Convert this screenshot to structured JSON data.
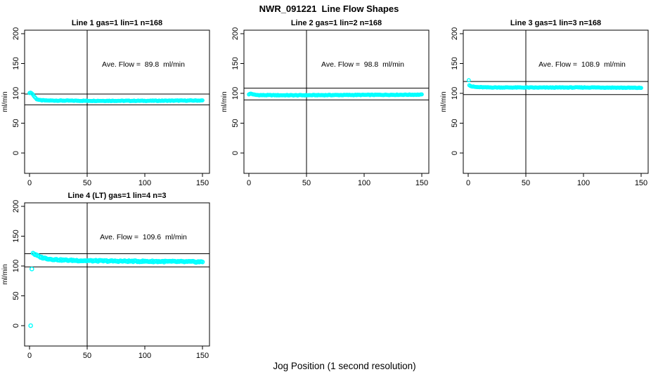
{
  "page": {
    "title": "NWR_091221  Line Flow Shapes",
    "xlabel": "Jog Position (1 second resolution)"
  },
  "colors": {
    "marker": "#00FFFF",
    "axis": "#000000",
    "background": "#FFFFFF"
  },
  "chart_data": [
    {
      "type": "scatter",
      "title": "Line 1 gas=1 lin=1 n=168",
      "annotation": "Ave. Flow =  89.8  ml/min",
      "ave_flow_ml_min": 89.8,
      "n": 168,
      "ylabel": "ml/min",
      "xlim": [
        0,
        150
      ],
      "ylim": [
        0,
        200
      ],
      "x_ticks": [
        0,
        50,
        100,
        150
      ],
      "y_ticks": [
        0,
        50,
        100,
        150,
        200
      ],
      "vline": 50,
      "hlines": [
        98.8,
        80.8
      ],
      "marker_color": "#00FFFF",
      "marker_radius": 2.2,
      "wiggle": 0.5,
      "samples": 168,
      "profile": [
        [
          0,
          101
        ],
        [
          2,
          100.5
        ],
        [
          4,
          95
        ],
        [
          6,
          90.5
        ],
        [
          9,
          88.5
        ],
        [
          14,
          88
        ],
        [
          50,
          87.5
        ],
        [
          100,
          87.5
        ],
        [
          150,
          88
        ]
      ],
      "outliers": []
    },
    {
      "type": "scatter",
      "title": "Line 2 gas=1 lin=2 n=168",
      "annotation": "Ave. Flow =  98.8  ml/min",
      "ave_flow_ml_min": 98.8,
      "n": 168,
      "ylabel": "ml/min",
      "xlim": [
        0,
        150
      ],
      "ylim": [
        0,
        200
      ],
      "x_ticks": [
        0,
        50,
        100,
        150
      ],
      "y_ticks": [
        0,
        50,
        100,
        150,
        200
      ],
      "vline": 50,
      "hlines": [
        108.7,
        88.9
      ],
      "marker_color": "#00FFFF",
      "marker_radius": 2.2,
      "wiggle": 0.5,
      "samples": 168,
      "profile": [
        [
          0,
          98.5
        ],
        [
          2,
          99.5
        ],
        [
          5,
          97.5
        ],
        [
          10,
          97
        ],
        [
          40,
          96.8
        ],
        [
          90,
          97.3
        ],
        [
          150,
          97.8
        ]
      ],
      "outliers": []
    },
    {
      "type": "scatter",
      "title": "Line 3 gas=1 lin=3 n=168",
      "annotation": "Ave. Flow =  108.9  ml/min",
      "ave_flow_ml_min": 108.9,
      "n": 168,
      "ylabel": "ml/min",
      "xlim": [
        0,
        150
      ],
      "ylim": [
        0,
        200
      ],
      "x_ticks": [
        0,
        50,
        100,
        150
      ],
      "y_ticks": [
        0,
        50,
        100,
        150,
        200
      ],
      "vline": 50,
      "hlines": [
        119.8,
        98.0
      ],
      "marker_color": "#00FFFF",
      "marker_radius": 2.2,
      "wiggle": 0.5,
      "samples": 168,
      "profile": [
        [
          1,
          114
        ],
        [
          3,
          111.5
        ],
        [
          7,
          110.5
        ],
        [
          15,
          110
        ],
        [
          60,
          109.7
        ],
        [
          110,
          109.9
        ],
        [
          150,
          109.2
        ]
      ],
      "outliers": [
        [
          0.5,
          122
        ]
      ]
    },
    {
      "type": "scatter",
      "title": "Line 4 (LT) gas=1 lin=4 n=3",
      "annotation": "Ave. Flow =  109.6  ml/min",
      "ave_flow_ml_min": 109.6,
      "n": 3,
      "ylabel": "ml/min",
      "xlim": [
        0,
        150
      ],
      "ylim": [
        0,
        200
      ],
      "x_ticks": [
        0,
        50,
        100,
        150
      ],
      "y_ticks": [
        0,
        50,
        100,
        150,
        200
      ],
      "vline": 50,
      "hlines": [
        120.6,
        98.6
      ],
      "marker_color": "#00FFFF",
      "marker_radius": 2.6,
      "wiggle": 1.0,
      "samples": 160,
      "profile": [
        [
          3,
          122
        ],
        [
          5,
          119
        ],
        [
          8,
          116
        ],
        [
          12,
          113.5
        ],
        [
          18,
          111.5
        ],
        [
          28,
          110
        ],
        [
          45,
          109
        ],
        [
          70,
          108.3
        ],
        [
          110,
          107.7
        ],
        [
          150,
          106.9
        ]
      ],
      "outliers": [
        [
          1,
          0
        ],
        [
          2,
          95
        ]
      ]
    }
  ]
}
